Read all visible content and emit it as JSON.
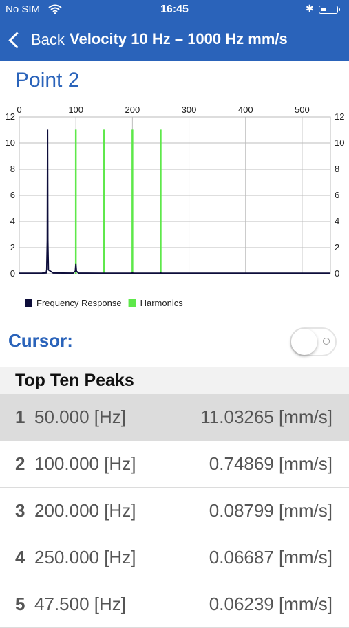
{
  "status_bar": {
    "carrier": "No SIM",
    "time": "16:45"
  },
  "nav": {
    "back_label": "Back",
    "title": "Velocity 10 Hz – 1000 Hz mm/s"
  },
  "point_title": "Point 2",
  "chart_data": {
    "type": "line",
    "x_ticks": [
      "0",
      "100",
      "200",
      "300",
      "400",
      "500"
    ],
    "y_ticks": [
      "0",
      "2",
      "4",
      "6",
      "8",
      "10",
      "12"
    ],
    "xlim": [
      0,
      550
    ],
    "ylim": [
      0,
      12
    ],
    "grid": true,
    "legend_position": "bottom-left",
    "series": [
      {
        "name": "Frequency Response",
        "color": "#0d0d3a",
        "x": [
          0,
          40,
          47.5,
          48.5,
          49.5,
          50,
          50.5,
          51.5,
          60,
          95,
          99,
          100,
          101,
          105,
          150,
          199,
          200,
          201,
          249,
          250,
          251,
          300,
          350,
          400,
          450,
          500,
          550
        ],
        "y": [
          0.04,
          0.05,
          0.06239,
          0.3,
          2.5,
          11.03265,
          2.5,
          0.3,
          0.06,
          0.05,
          0.2,
          0.74869,
          0.2,
          0.05,
          0.04,
          0.04,
          0.08799,
          0.04,
          0.04,
          0.06687,
          0.04,
          0.04,
          0.04,
          0.04,
          0.04,
          0.04,
          0.04
        ]
      },
      {
        "name": "Harmonics",
        "color": "#5ee84a",
        "x": [
          100,
          150,
          200,
          250
        ],
        "y": [
          11.03265,
          11.03265,
          11.03265,
          11.03265
        ]
      }
    ]
  },
  "cursor": {
    "label": "Cursor:"
  },
  "peaks": {
    "header": "Top Ten Peaks",
    "rows": [
      {
        "rank": "1",
        "freq": "50.000 [Hz]",
        "amp": "11.03265 [mm/s]"
      },
      {
        "rank": "2",
        "freq": "100.000 [Hz]",
        "amp": "0.74869 [mm/s]"
      },
      {
        "rank": "3",
        "freq": "200.000 [Hz]",
        "amp": "0.08799 [mm/s]"
      },
      {
        "rank": "4",
        "freq": "250.000 [Hz]",
        "amp": "0.06687 [mm/s]"
      },
      {
        "rank": "5",
        "freq": "47.500 [Hz]",
        "amp": "0.06239 [mm/s]"
      }
    ]
  }
}
